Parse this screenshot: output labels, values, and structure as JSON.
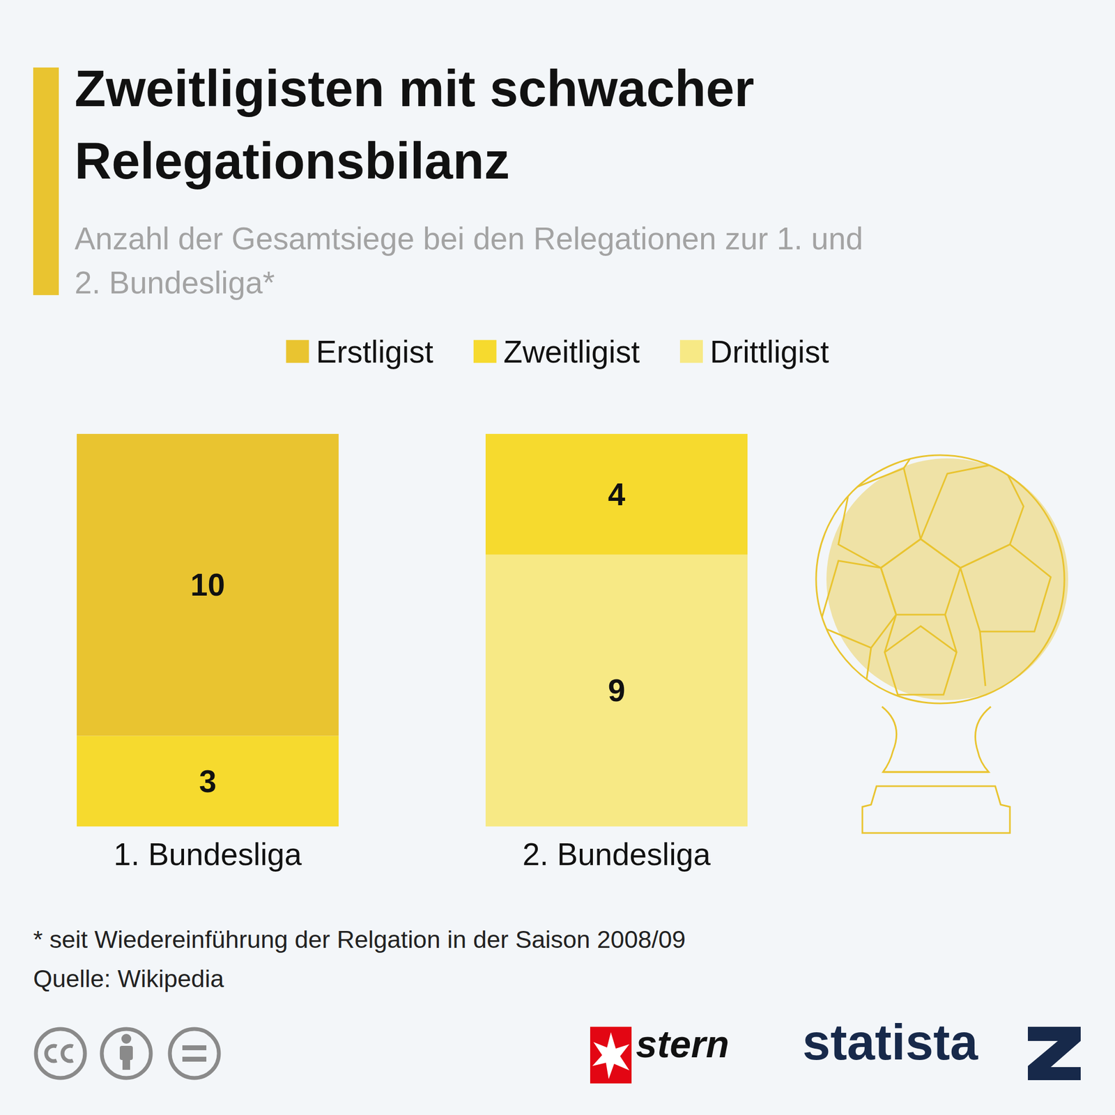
{
  "chart_data": {
    "type": "bar",
    "title": "Zweitligisten mit schwacher Relegationsbilanz",
    "subtitle": "Anzahl der Gesamtsiege bei den Relegationen zur 1. und 2. Bundesliga*",
    "categories": [
      "1. Bundesliga",
      "2. Bundesliga"
    ],
    "series": [
      {
        "name": "Erstligist",
        "color": "#e9c430",
        "values": [
          10,
          null
        ]
      },
      {
        "name": "Zweitligist",
        "color": "#f6da2e",
        "values": [
          3,
          4
        ]
      },
      {
        "name": "Drittligist",
        "color": "#f7e985",
        "values": [
          null,
          9
        ]
      }
    ],
    "ylim": [
      0,
      13
    ],
    "stacked": true,
    "data_labels": true,
    "legend": "top",
    "grid": false,
    "tick_labels": "x",
    "footnote": "* seit Wiedereinführung der Relgation in der Saison 2008/09",
    "source": "Quelle: Wikipedia",
    "brands": [
      "stern",
      "statista"
    ]
  }
}
